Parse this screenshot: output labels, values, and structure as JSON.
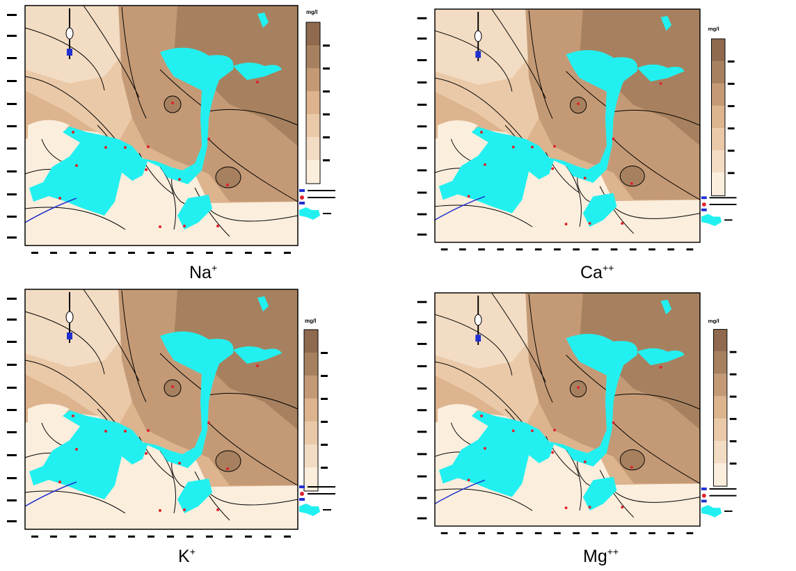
{
  "panels": [
    {
      "id": "na",
      "ion": "Na",
      "charge": "+",
      "legend_title": "mg/l"
    },
    {
      "id": "ca",
      "ion": "Ca",
      "charge": "++",
      "legend_title": "mg/l"
    },
    {
      "id": "k",
      "ion": "K",
      "charge": "+",
      "legend_title": "mg/l"
    },
    {
      "id": "mg",
      "ion": "Mg",
      "charge": "++",
      "legend_title": "mg/l"
    }
  ],
  "legend_scale_colors": [
    "#8f6a4f",
    "#a7815f",
    "#c49a76",
    "#ddb48e",
    "#eac9a8",
    "#f2dcc3",
    "#fbeedd"
  ],
  "map_colors": {
    "lake": "#22f0f0",
    "contour": "#000000",
    "sample": "#e0202a",
    "label": "#2030d0"
  }
}
